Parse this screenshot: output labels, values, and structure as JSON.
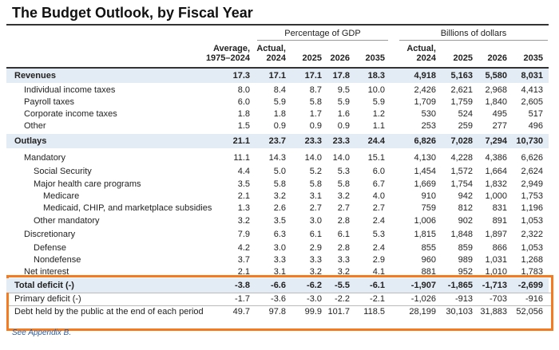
{
  "title": "The Budget Outlook, by Fiscal Year",
  "groups": [
    "Percentage of GDP",
    "Billions of dollars"
  ],
  "columns": [
    [
      "Average,",
      "1975–2024"
    ],
    [
      "Actual,",
      "2024"
    ],
    [
      "2025"
    ],
    [
      "2026"
    ],
    [
      "2035"
    ],
    [
      "Actual,",
      "2024"
    ],
    [
      "2025"
    ],
    [
      "2026"
    ],
    [
      "2035"
    ]
  ],
  "rows": [
    [
      "Revenues",
      "17.3",
      "17.1",
      "17.1",
      "17.8",
      "18.3",
      "4,918",
      "5,163",
      "5,580",
      "8,031"
    ],
    [
      "Individual income taxes",
      "8.0",
      "8.4",
      "8.7",
      "9.5",
      "10.0",
      "2,426",
      "2,621",
      "2,968",
      "4,413"
    ],
    [
      "Payroll taxes",
      "6.0",
      "5.9",
      "5.8",
      "5.9",
      "5.9",
      "1,709",
      "1,759",
      "1,840",
      "2,605"
    ],
    [
      "Corporate income taxes",
      "1.8",
      "1.8",
      "1.7",
      "1.6",
      "1.2",
      "530",
      "524",
      "495",
      "517"
    ],
    [
      "Other",
      "1.5",
      "0.9",
      "0.9",
      "0.9",
      "1.1",
      "253",
      "259",
      "277",
      "496"
    ],
    [
      "Outlays",
      "21.1",
      "23.7",
      "23.3",
      "23.3",
      "24.4",
      "6,826",
      "7,028",
      "7,294",
      "10,730"
    ],
    [
      "Mandatory",
      "11.1",
      "14.3",
      "14.0",
      "14.0",
      "15.1",
      "4,130",
      "4,228",
      "4,386",
      "6,626"
    ],
    [
      "Social Security",
      "4.4",
      "5.0",
      "5.2",
      "5.3",
      "6.0",
      "1,454",
      "1,572",
      "1,664",
      "2,624"
    ],
    [
      "Major health care programs",
      "3.5",
      "5.8",
      "5.8",
      "5.8",
      "6.7",
      "1,669",
      "1,754",
      "1,832",
      "2,949"
    ],
    [
      "Medicare",
      "2.1",
      "3.2",
      "3.1",
      "3.2",
      "4.0",
      "910",
      "942",
      "1,000",
      "1,753"
    ],
    [
      "Medicaid, CHIP, and marketplace subsidies",
      "1.3",
      "2.6",
      "2.7",
      "2.7",
      "2.7",
      "759",
      "812",
      "831",
      "1,196"
    ],
    [
      "Other mandatory",
      "3.2",
      "3.5",
      "3.0",
      "2.8",
      "2.4",
      "1,006",
      "902",
      "891",
      "1,053"
    ],
    [
      "Discretionary",
      "7.9",
      "6.3",
      "6.1",
      "6.1",
      "5.3",
      "1,815",
      "1,848",
      "1,897",
      "2,322"
    ],
    [
      "Defense",
      "4.2",
      "3.0",
      "2.9",
      "2.8",
      "2.4",
      "855",
      "859",
      "866",
      "1,053"
    ],
    [
      "Nondefense",
      "3.7",
      "3.3",
      "3.3",
      "3.3",
      "2.9",
      "960",
      "989",
      "1,031",
      "1,268"
    ],
    [
      "Net interest",
      "2.1",
      "3.1",
      "3.2",
      "3.2",
      "4.1",
      "881",
      "952",
      "1,010",
      "1,783"
    ]
  ],
  "summary": [
    [
      "Total deficit (-)",
      "-3.8",
      "-6.6",
      "-6.2",
      "-5.5",
      "-6.1",
      "-1,907",
      "-1,865",
      "-1,713",
      "-2,699"
    ],
    [
      "Primary deficit (-)",
      "-1.7",
      "-3.6",
      "-3.0",
      "-2.2",
      "-2.1",
      "-1,026",
      "-913",
      "-703",
      "-916"
    ],
    [
      "Debt held by the public at the end of each period",
      "49.7",
      "97.8",
      "99.9",
      "101.7",
      "118.5",
      "28,199",
      "30,103",
      "31,883",
      "52,056"
    ]
  ],
  "footnote": "See Appendix B."
}
